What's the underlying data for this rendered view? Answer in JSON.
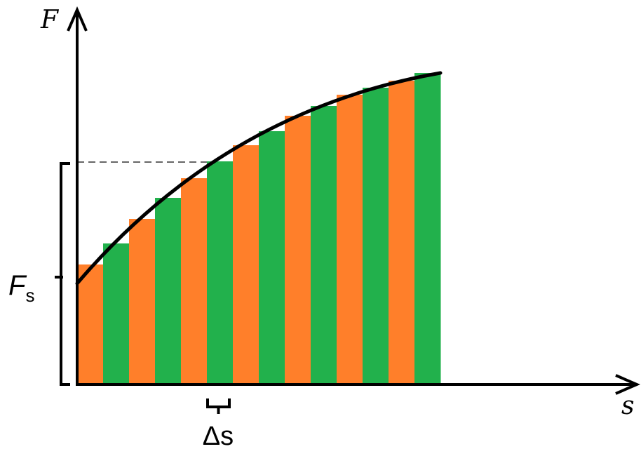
{
  "labels": {
    "y_axis": "F",
    "x_axis": "s",
    "fs_main": "F",
    "fs_sub": "s",
    "delta": "Δs"
  },
  "colors": {
    "orange": "#FF7F2A",
    "green": "#22B14C",
    "axis": "#000000",
    "curve": "#000000",
    "dashed": "#333333"
  },
  "bars": {
    "count": 14,
    "color_order": [
      "orange",
      "green"
    ]
  }
}
